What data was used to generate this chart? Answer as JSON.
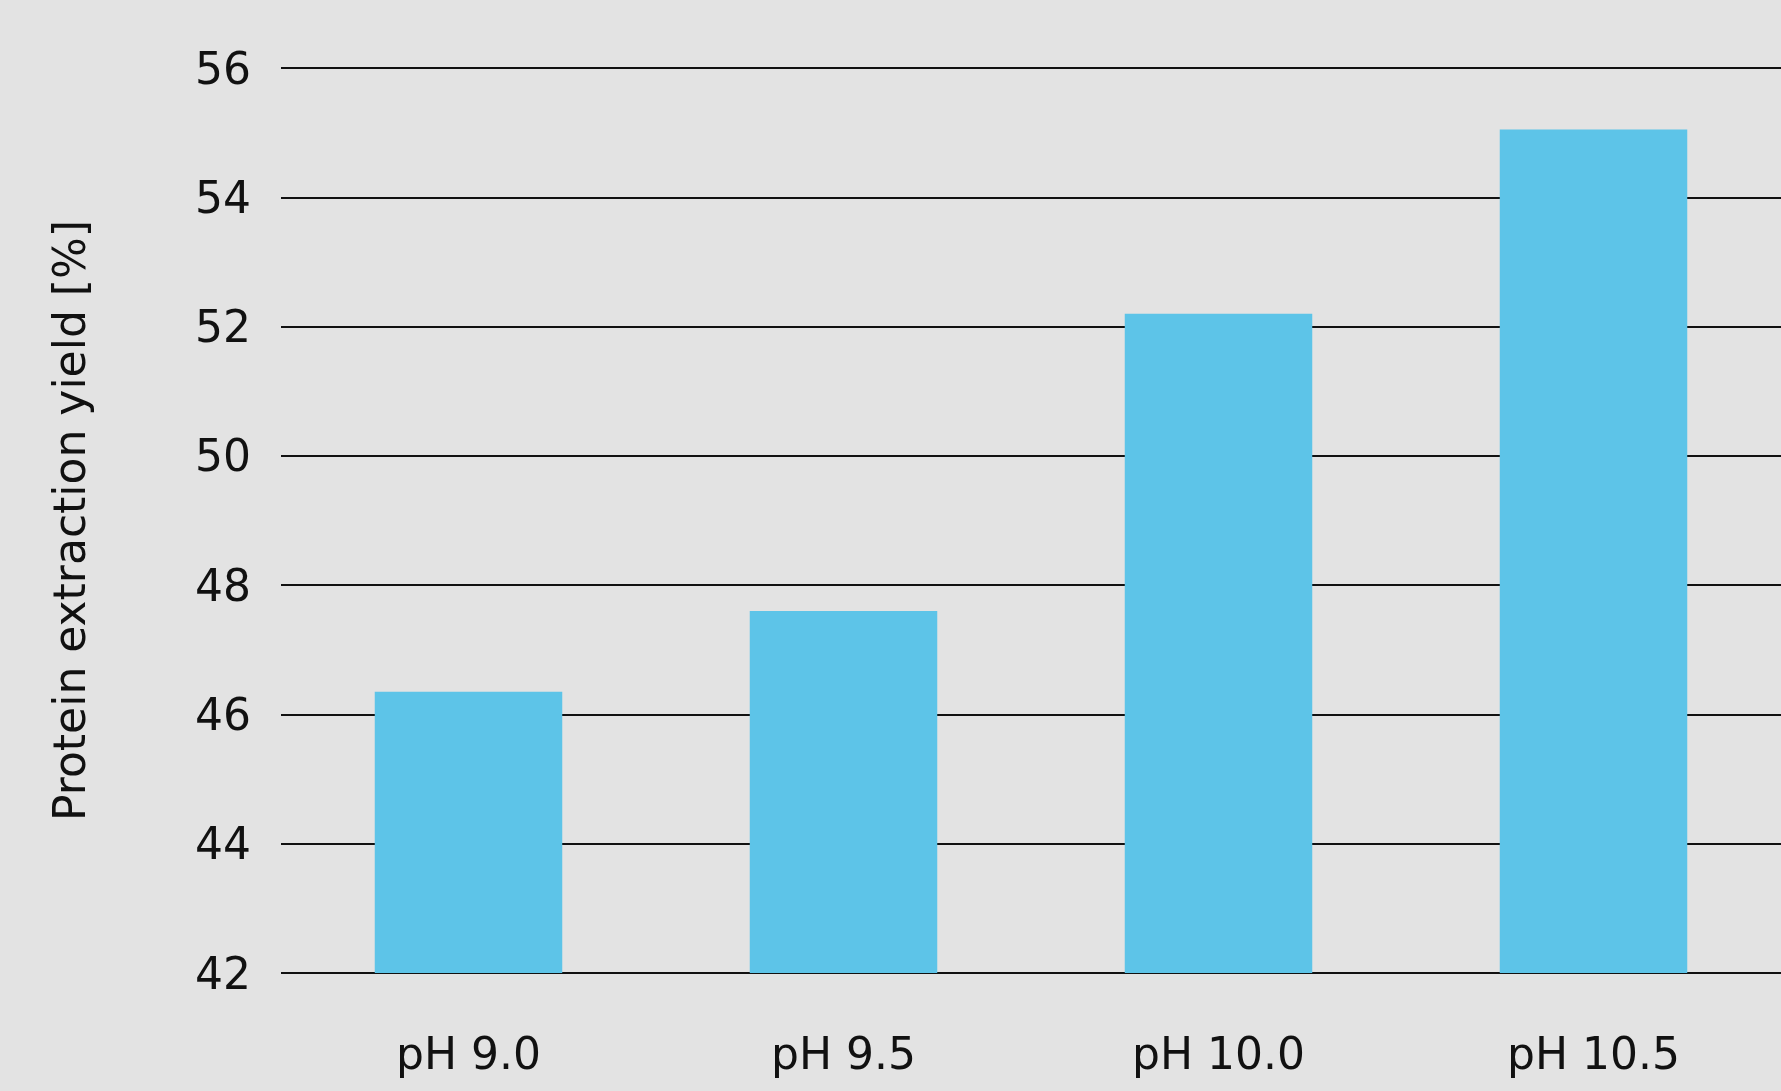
{
  "chart_data": {
    "type": "bar",
    "ylabel": "Protein extraction yield [%]",
    "categories": [
      "pH 9.0",
      "pH 9.5",
      "pH 10.0",
      "pH 10.5"
    ],
    "values": [
      46.35,
      47.6,
      52.2,
      55.05
    ],
    "color": "#5dc4e8",
    "ylim": [
      42,
      56
    ],
    "yticks": [
      42,
      44,
      46,
      48,
      50,
      52,
      54,
      56
    ],
    "grid": "y"
  }
}
